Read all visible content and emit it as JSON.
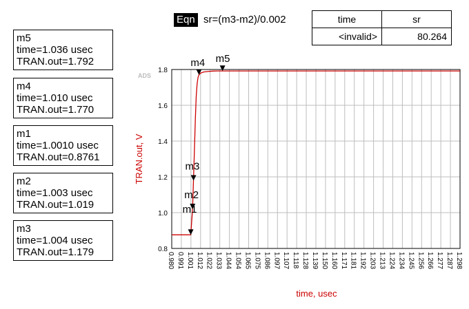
{
  "equation": {
    "tag": "Eqn",
    "expression": "sr=(m3-m2)/0.002",
    "table": {
      "headers": [
        "time",
        "sr"
      ],
      "row": [
        "<invalid>",
        "80.264"
      ]
    }
  },
  "markers": [
    {
      "name": "m5",
      "time": "time=1.036 usec",
      "value": "TRAN.out=1.792"
    },
    {
      "name": "m4",
      "time": "time=1.010 usec",
      "value": "TRAN.out=1.770"
    },
    {
      "name": "m1",
      "time": "time=1.0010 usec",
      "value": "TRAN.out=0.8761"
    },
    {
      "name": "m2",
      "time": "time=1.003 usec",
      "value": "TRAN.out=1.019"
    },
    {
      "name": "m3",
      "time": "time=1.004 usec",
      "value": "TRAN.out=1.179"
    }
  ],
  "watermark": "ADS",
  "chart_data": {
    "type": "line",
    "xlabel": "time, usec",
    "ylabel": "TRAN.out, V",
    "xlim": [
      0.98,
      1.298
    ],
    "ylim": [
      0.8,
      1.8
    ],
    "x_ticks": [
      "0.980",
      "0.991",
      "1.001",
      "1.012",
      "1.022",
      "1.033",
      "1.044",
      "1.054",
      "1.065",
      "1.075",
      "1.086",
      "1.097",
      "1.107",
      "1.118",
      "1.128",
      "1.139",
      "1.150",
      "1.160",
      "1.171",
      "1.181",
      "1.192",
      "1.203",
      "1.213",
      "1.224",
      "1.234",
      "1.245",
      "1.256",
      "1.266",
      "1.277",
      "1.287",
      "1.298"
    ],
    "y_ticks": [
      "0.8",
      "1.0",
      "1.2",
      "1.4",
      "1.6",
      "1.8"
    ],
    "grid": true,
    "series": [
      {
        "color": "#cc0000",
        "x": [
          0.98,
          1.0,
          1.001,
          1.002,
          1.003,
          1.004,
          1.005,
          1.006,
          1.007,
          1.008,
          1.009,
          1.01,
          1.012,
          1.015,
          1.02,
          1.025,
          1.03,
          1.036,
          1.05,
          1.1,
          1.2,
          1.298
        ],
        "y": [
          0.876,
          0.876,
          0.8761,
          0.95,
          1.019,
          1.179,
          1.35,
          1.52,
          1.65,
          1.72,
          1.755,
          1.77,
          1.78,
          1.786,
          1.789,
          1.791,
          1.792,
          1.792,
          1.792,
          1.792,
          1.792,
          1.792
        ]
      }
    ],
    "marker_points": [
      {
        "name": "m1",
        "x": 1.001,
        "y": 0.8761
      },
      {
        "name": "m2",
        "x": 1.003,
        "y": 1.019
      },
      {
        "name": "m3",
        "x": 1.004,
        "y": 1.179
      },
      {
        "name": "m4",
        "x": 1.01,
        "y": 1.77
      },
      {
        "name": "m5",
        "x": 1.036,
        "y": 1.792
      }
    ]
  }
}
